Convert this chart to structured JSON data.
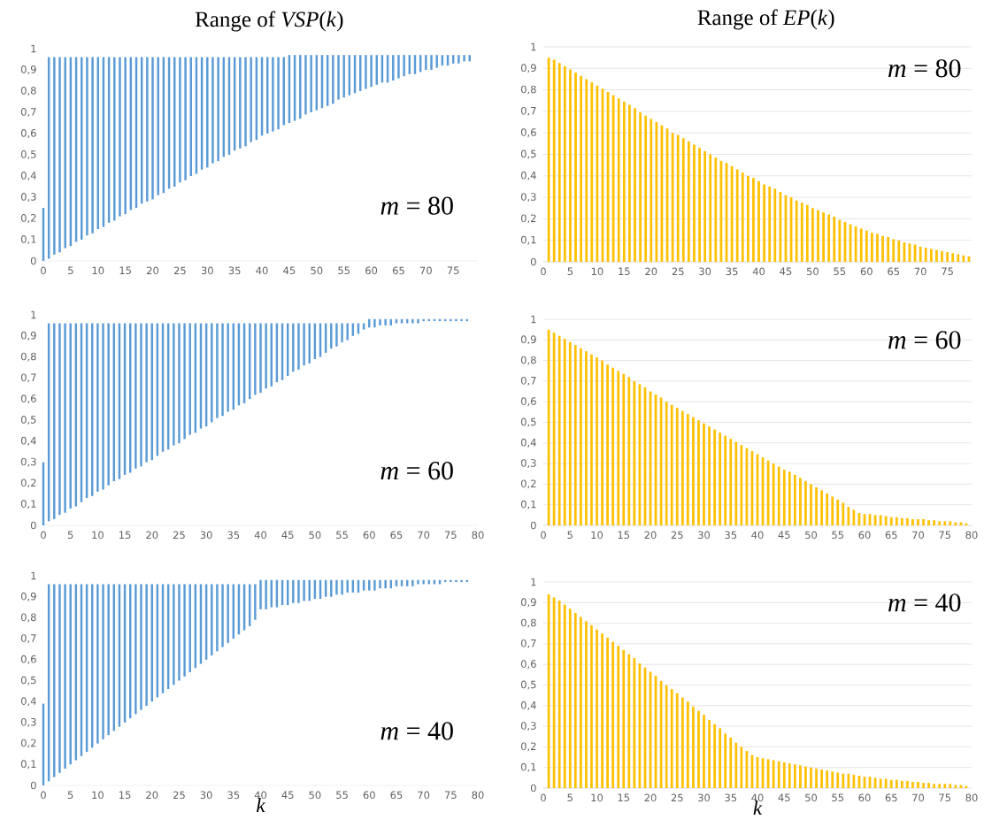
{
  "chart_data": [
    {
      "type": "bar",
      "title": "Range of *VSP*(*k*)",
      "annotations": [
        "*m* = 80"
      ],
      "color": "#5b9bd5",
      "x": [
        0,
        1,
        2,
        3,
        4,
        5,
        6,
        7,
        8,
        9,
        10,
        11,
        12,
        13,
        14,
        15,
        16,
        17,
        18,
        19,
        20,
        21,
        22,
        23,
        24,
        25,
        26,
        27,
        28,
        29,
        30,
        31,
        32,
        33,
        34,
        35,
        36,
        37,
        38,
        39,
        40,
        41,
        42,
        43,
        44,
        45,
        46,
        47,
        48,
        49,
        50,
        51,
        52,
        53,
        54,
        55,
        56,
        57,
        58,
        59,
        60,
        61,
        62,
        63,
        64,
        65,
        66,
        67,
        68,
        69,
        70,
        71,
        72,
        73,
        74,
        75,
        76,
        77,
        78
      ],
      "base": [
        0,
        0.01,
        0.03,
        0.04,
        0.06,
        0.07,
        0.09,
        0.1,
        0.12,
        0.13,
        0.15,
        0.16,
        0.18,
        0.19,
        0.21,
        0.22,
        0.24,
        0.25,
        0.27,
        0.28,
        0.29,
        0.31,
        0.32,
        0.34,
        0.35,
        0.37,
        0.38,
        0.4,
        0.41,
        0.43,
        0.44,
        0.46,
        0.47,
        0.49,
        0.5,
        0.52,
        0.53,
        0.54,
        0.56,
        0.57,
        0.59,
        0.6,
        0.61,
        0.62,
        0.64,
        0.65,
        0.66,
        0.67,
        0.69,
        0.7,
        0.71,
        0.72,
        0.73,
        0.74,
        0.76,
        0.77,
        0.78,
        0.79,
        0.8,
        0.81,
        0.82,
        0.83,
        0.84,
        0.84,
        0.85,
        0.86,
        0.87,
        0.88,
        0.88,
        0.89,
        0.9,
        0.9,
        0.91,
        0.92,
        0.92,
        0.93,
        0.93,
        0.94,
        0.94
      ],
      "values": [
        0.25,
        0.95,
        0.93,
        0.92,
        0.9,
        0.89,
        0.87,
        0.86,
        0.84,
        0.83,
        0.81,
        0.8,
        0.78,
        0.77,
        0.75,
        0.74,
        0.72,
        0.71,
        0.69,
        0.68,
        0.67,
        0.65,
        0.64,
        0.62,
        0.61,
        0.59,
        0.58,
        0.56,
        0.55,
        0.53,
        0.52,
        0.5,
        0.49,
        0.47,
        0.46,
        0.44,
        0.43,
        0.42,
        0.4,
        0.39,
        0.37,
        0.36,
        0.35,
        0.34,
        0.32,
        0.32,
        0.31,
        0.3,
        0.28,
        0.27,
        0.26,
        0.25,
        0.24,
        0.23,
        0.21,
        0.2,
        0.19,
        0.18,
        0.17,
        0.16,
        0.15,
        0.14,
        0.13,
        0.13,
        0.12,
        0.11,
        0.1,
        0.09,
        0.09,
        0.08,
        0.07,
        0.07,
        0.06,
        0.05,
        0.05,
        0.04,
        0.04,
        0.03,
        0.03
      ],
      "xlim": [
        0,
        79.5
      ],
      "ylim": [
        0,
        1
      ],
      "xticks": [
        0,
        5,
        10,
        15,
        20,
        25,
        30,
        35,
        40,
        45,
        50,
        55,
        60,
        65,
        70,
        75
      ],
      "yticks": [
        0,
        {
          "value": 0.1,
          "label": "0,1"
        },
        {
          "value": 0.2,
          "label": "0,2"
        },
        {
          "value": 0.3,
          "label": "0,3"
        },
        {
          "value": 0.4,
          "label": "0,4"
        },
        {
          "value": 0.5,
          "label": "0,5"
        },
        {
          "value": 0.6,
          "label": "0,6"
        },
        {
          "value": 0.7,
          "label": "0,7"
        },
        {
          "value": 0.8,
          "label": "0,8"
        },
        {
          "value": 0.9,
          "label": "0,9"
        },
        1
      ]
    },
    {
      "type": "bar",
      "title": "Range of *EP*(*k*)",
      "annotations": [
        "*m* = 80"
      ],
      "color": "#ffc000",
      "grid": "y",
      "x": [
        1,
        2,
        3,
        4,
        5,
        6,
        7,
        8,
        9,
        10,
        11,
        12,
        13,
        14,
        15,
        16,
        17,
        18,
        19,
        20,
        21,
        22,
        23,
        24,
        25,
        26,
        27,
        28,
        29,
        30,
        31,
        32,
        33,
        34,
        35,
        36,
        37,
        38,
        39,
        40,
        41,
        42,
        43,
        44,
        45,
        46,
        47,
        48,
        49,
        50,
        51,
        52,
        53,
        54,
        55,
        56,
        57,
        58,
        59,
        60,
        61,
        62,
        63,
        64,
        65,
        66,
        67,
        68,
        69,
        70,
        71,
        72,
        73,
        74,
        75,
        76,
        77,
        78,
        79
      ],
      "values": [
        0.95,
        0.94,
        0.925,
        0.91,
        0.895,
        0.88,
        0.865,
        0.85,
        0.835,
        0.82,
        0.805,
        0.79,
        0.775,
        0.76,
        0.745,
        0.73,
        0.715,
        0.695,
        0.68,
        0.665,
        0.65,
        0.635,
        0.62,
        0.6,
        0.59,
        0.575,
        0.56,
        0.545,
        0.53,
        0.515,
        0.5,
        0.485,
        0.47,
        0.46,
        0.445,
        0.43,
        0.415,
        0.4,
        0.39,
        0.375,
        0.36,
        0.35,
        0.34,
        0.325,
        0.31,
        0.3,
        0.285,
        0.275,
        0.265,
        0.25,
        0.24,
        0.23,
        0.22,
        0.21,
        0.195,
        0.185,
        0.175,
        0.165,
        0.155,
        0.145,
        0.135,
        0.13,
        0.12,
        0.115,
        0.105,
        0.1,
        0.09,
        0.085,
        0.08,
        0.07,
        0.065,
        0.06,
        0.055,
        0.05,
        0.045,
        0.04,
        0.035,
        0.03,
        0.025
      ],
      "xlim": [
        0,
        79.5
      ],
      "ylim": [
        0,
        1
      ],
      "xticks": [
        0,
        5,
        10,
        15,
        20,
        25,
        30,
        35,
        40,
        45,
        50,
        55,
        60,
        65,
        70,
        75
      ],
      "yticks": [
        0,
        {
          "value": 0.1,
          "label": "0,1"
        },
        {
          "value": 0.2,
          "label": "0,2"
        },
        {
          "value": 0.3,
          "label": "0,3"
        },
        {
          "value": 0.4,
          "label": "0,4"
        },
        {
          "value": 0.5,
          "label": "0,5"
        },
        {
          "value": 0.6,
          "label": "0,6"
        },
        {
          "value": 0.7,
          "label": "0,7"
        },
        {
          "value": 0.8,
          "label": "0,8"
        },
        {
          "value": 0.9,
          "label": "0,9"
        },
        1
      ]
    },
    {
      "type": "bar",
      "annotations": [
        "*m* = 60"
      ],
      "color": "#5b9bd5",
      "x": [
        0,
        1,
        2,
        3,
        4,
        5,
        6,
        7,
        8,
        9,
        10,
        11,
        12,
        13,
        14,
        15,
        16,
        17,
        18,
        19,
        20,
        21,
        22,
        23,
        24,
        25,
        26,
        27,
        28,
        29,
        30,
        31,
        32,
        33,
        34,
        35,
        36,
        37,
        38,
        39,
        40,
        41,
        42,
        43,
        44,
        45,
        46,
        47,
        48,
        49,
        50,
        51,
        52,
        53,
        54,
        55,
        56,
        57,
        58,
        59,
        60,
        61,
        62,
        63,
        64,
        65,
        66,
        67,
        68,
        69,
        70,
        71,
        72,
        73,
        74,
        75,
        76,
        77,
        78
      ],
      "base": [
        0,
        0.02,
        0.03,
        0.05,
        0.06,
        0.08,
        0.09,
        0.11,
        0.13,
        0.14,
        0.16,
        0.17,
        0.19,
        0.21,
        0.22,
        0.24,
        0.25,
        0.27,
        0.28,
        0.3,
        0.31,
        0.33,
        0.35,
        0.36,
        0.38,
        0.39,
        0.41,
        0.43,
        0.44,
        0.46,
        0.47,
        0.49,
        0.51,
        0.52,
        0.54,
        0.55,
        0.57,
        0.58,
        0.6,
        0.62,
        0.63,
        0.65,
        0.66,
        0.68,
        0.69,
        0.71,
        0.73,
        0.74,
        0.76,
        0.77,
        0.79,
        0.8,
        0.82,
        0.84,
        0.85,
        0.87,
        0.88,
        0.9,
        0.91,
        0.93,
        0.94,
        0.94,
        0.95,
        0.95,
        0.95,
        0.96,
        0.96,
        0.96,
        0.96,
        0.96,
        0.97,
        0.97,
        0.97,
        0.97,
        0.97,
        0.97,
        0.97,
        0.97,
        0.97
      ],
      "values": [
        0.3,
        0.94,
        0.93,
        0.91,
        0.9,
        0.88,
        0.87,
        0.85,
        0.83,
        0.82,
        0.8,
        0.79,
        0.77,
        0.75,
        0.74,
        0.72,
        0.71,
        0.69,
        0.68,
        0.66,
        0.65,
        0.63,
        0.61,
        0.6,
        0.58,
        0.57,
        0.55,
        0.53,
        0.52,
        0.5,
        0.49,
        0.47,
        0.45,
        0.44,
        0.42,
        0.41,
        0.39,
        0.38,
        0.36,
        0.34,
        0.33,
        0.31,
        0.3,
        0.28,
        0.27,
        0.25,
        0.23,
        0.22,
        0.2,
        0.19,
        0.17,
        0.16,
        0.14,
        0.12,
        0.11,
        0.09,
        0.08,
        0.06,
        0.05,
        0.03,
        0.04,
        0.04,
        0.03,
        0.03,
        0.03,
        0.02,
        0.02,
        0.02,
        0.02,
        0.02,
        0.01,
        0.01,
        0.01,
        0.01,
        0.01,
        0.01,
        0.01,
        0.01,
        0.01
      ],
      "xlim": [
        0,
        80
      ],
      "ylim": [
        0,
        1
      ],
      "xticks": [
        0,
        5,
        10,
        15,
        20,
        25,
        30,
        35,
        40,
        45,
        50,
        55,
        60,
        65,
        70,
        75,
        80
      ],
      "yticks": [
        0,
        {
          "value": 0.1,
          "label": "0,1"
        },
        {
          "value": 0.2,
          "label": "0,2"
        },
        {
          "value": 0.3,
          "label": "0,3"
        },
        {
          "value": 0.4,
          "label": "0,4"
        },
        {
          "value": 0.5,
          "label": "0,5"
        },
        {
          "value": 0.6,
          "label": "0,6"
        },
        {
          "value": 0.7,
          "label": "0,7"
        },
        {
          "value": 0.8,
          "label": "0,8"
        },
        {
          "value": 0.9,
          "label": "0,9"
        },
        1
      ]
    },
    {
      "type": "bar",
      "annotations": [
        "*m* = 60"
      ],
      "color": "#ffc000",
      "grid": "y",
      "x": [
        1,
        2,
        3,
        4,
        5,
        6,
        7,
        8,
        9,
        10,
        11,
        12,
        13,
        14,
        15,
        16,
        17,
        18,
        19,
        20,
        21,
        22,
        23,
        24,
        25,
        26,
        27,
        28,
        29,
        30,
        31,
        32,
        33,
        34,
        35,
        36,
        37,
        38,
        39,
        40,
        41,
        42,
        43,
        44,
        45,
        46,
        47,
        48,
        49,
        50,
        51,
        52,
        53,
        54,
        55,
        56,
        57,
        58,
        59,
        60,
        61,
        62,
        63,
        64,
        65,
        66,
        67,
        68,
        69,
        70,
        71,
        72,
        73,
        74,
        75,
        76,
        77,
        78,
        79
      ],
      "values": [
        0.95,
        0.935,
        0.92,
        0.905,
        0.89,
        0.875,
        0.86,
        0.845,
        0.83,
        0.815,
        0.8,
        0.78,
        0.765,
        0.75,
        0.735,
        0.72,
        0.7,
        0.685,
        0.67,
        0.65,
        0.635,
        0.62,
        0.6,
        0.585,
        0.57,
        0.555,
        0.54,
        0.525,
        0.51,
        0.495,
        0.48,
        0.465,
        0.45,
        0.435,
        0.42,
        0.405,
        0.39,
        0.375,
        0.36,
        0.345,
        0.33,
        0.315,
        0.3,
        0.285,
        0.27,
        0.26,
        0.245,
        0.23,
        0.215,
        0.2,
        0.185,
        0.17,
        0.155,
        0.14,
        0.125,
        0.11,
        0.09,
        0.075,
        0.06,
        0.055,
        0.055,
        0.05,
        0.05,
        0.045,
        0.04,
        0.04,
        0.035,
        0.035,
        0.03,
        0.03,
        0.03,
        0.025,
        0.025,
        0.02,
        0.02,
        0.02,
        0.015,
        0.015,
        0.01
      ],
      "xlim": [
        0,
        80
      ],
      "ylim": [
        0,
        1
      ],
      "xticks": [
        0,
        5,
        10,
        15,
        20,
        25,
        30,
        35,
        40,
        45,
        50,
        55,
        60,
        65,
        70,
        75,
        80
      ],
      "yticks": [
        0,
        {
          "value": 0.1,
          "label": "0,1"
        },
        {
          "value": 0.2,
          "label": "0,2"
        },
        {
          "value": 0.3,
          "label": "0,3"
        },
        {
          "value": 0.4,
          "label": "0,4"
        },
        {
          "value": 0.5,
          "label": "0,5"
        },
        {
          "value": 0.6,
          "label": "0,6"
        },
        {
          "value": 0.7,
          "label": "0,7"
        },
        {
          "value": 0.8,
          "label": "0,8"
        },
        {
          "value": 0.9,
          "label": "0,9"
        },
        1
      ]
    },
    {
      "type": "bar",
      "xlabel": "k",
      "annotations": [
        "*m* = 40"
      ],
      "color": "#5b9bd5",
      "x": [
        0,
        1,
        2,
        3,
        4,
        5,
        6,
        7,
        8,
        9,
        10,
        11,
        12,
        13,
        14,
        15,
        16,
        17,
        18,
        19,
        20,
        21,
        22,
        23,
        24,
        25,
        26,
        27,
        28,
        29,
        30,
        31,
        32,
        33,
        34,
        35,
        36,
        37,
        38,
        39,
        40,
        41,
        42,
        43,
        44,
        45,
        46,
        47,
        48,
        49,
        50,
        51,
        52,
        53,
        54,
        55,
        56,
        57,
        58,
        59,
        60,
        61,
        62,
        63,
        64,
        65,
        66,
        67,
        68,
        69,
        70,
        71,
        72,
        73,
        74,
        75,
        76,
        77,
        78
      ],
      "base": [
        0,
        0.02,
        0.04,
        0.06,
        0.08,
        0.1,
        0.12,
        0.14,
        0.16,
        0.18,
        0.2,
        0.22,
        0.24,
        0.26,
        0.28,
        0.3,
        0.32,
        0.34,
        0.36,
        0.38,
        0.4,
        0.42,
        0.44,
        0.46,
        0.48,
        0.5,
        0.52,
        0.54,
        0.56,
        0.58,
        0.6,
        0.62,
        0.64,
        0.66,
        0.68,
        0.7,
        0.72,
        0.74,
        0.76,
        0.79,
        0.84,
        0.84,
        0.85,
        0.85,
        0.86,
        0.86,
        0.87,
        0.87,
        0.88,
        0.88,
        0.89,
        0.89,
        0.9,
        0.9,
        0.91,
        0.91,
        0.92,
        0.92,
        0.92,
        0.93,
        0.93,
        0.93,
        0.94,
        0.94,
        0.94,
        0.95,
        0.95,
        0.95,
        0.95,
        0.96,
        0.96,
        0.96,
        0.96,
        0.96,
        0.97,
        0.97,
        0.97,
        0.97,
        0.97
      ],
      "values": [
        0.39,
        0.94,
        0.92,
        0.9,
        0.88,
        0.86,
        0.84,
        0.82,
        0.8,
        0.78,
        0.76,
        0.74,
        0.72,
        0.7,
        0.68,
        0.66,
        0.64,
        0.62,
        0.6,
        0.58,
        0.56,
        0.54,
        0.52,
        0.5,
        0.48,
        0.46,
        0.44,
        0.42,
        0.4,
        0.38,
        0.36,
        0.34,
        0.32,
        0.3,
        0.28,
        0.26,
        0.24,
        0.22,
        0.2,
        0.17,
        0.14,
        0.14,
        0.13,
        0.13,
        0.12,
        0.12,
        0.11,
        0.11,
        0.1,
        0.1,
        0.09,
        0.09,
        0.08,
        0.08,
        0.07,
        0.07,
        0.06,
        0.06,
        0.06,
        0.05,
        0.05,
        0.05,
        0.04,
        0.04,
        0.04,
        0.03,
        0.03,
        0.03,
        0.03,
        0.02,
        0.02,
        0.02,
        0.02,
        0.02,
        0.01,
        0.01,
        0.01,
        0.01,
        0.01
      ],
      "xlim": [
        0,
        80
      ],
      "ylim": [
        0,
        1
      ],
      "xticks": [
        0,
        5,
        10,
        15,
        20,
        25,
        30,
        35,
        40,
        45,
        50,
        55,
        60,
        65,
        70,
        75,
        80
      ],
      "yticks": [
        0,
        {
          "value": 0.1,
          "label": "0,1"
        },
        {
          "value": 0.2,
          "label": "0,2"
        },
        {
          "value": 0.3,
          "label": "0,3"
        },
        {
          "value": 0.4,
          "label": "0,4"
        },
        {
          "value": 0.5,
          "label": "0,5"
        },
        {
          "value": 0.6,
          "label": "0,6"
        },
        {
          "value": 0.7,
          "label": "0,7"
        },
        {
          "value": 0.8,
          "label": "0,8"
        },
        {
          "value": 0.9,
          "label": "0,9"
        },
        1
      ]
    },
    {
      "type": "bar",
      "xlabel": "k",
      "annotations": [
        "*m* = 40"
      ],
      "color": "#ffc000",
      "grid": "y",
      "x": [
        1,
        2,
        3,
        4,
        5,
        6,
        7,
        8,
        9,
        10,
        11,
        12,
        13,
        14,
        15,
        16,
        17,
        18,
        19,
        20,
        21,
        22,
        23,
        24,
        25,
        26,
        27,
        28,
        29,
        30,
        31,
        32,
        33,
        34,
        35,
        36,
        37,
        38,
        39,
        40,
        41,
        42,
        43,
        44,
        45,
        46,
        47,
        48,
        49,
        50,
        51,
        52,
        53,
        54,
        55,
        56,
        57,
        58,
        59,
        60,
        61,
        62,
        63,
        64,
        65,
        66,
        67,
        68,
        69,
        70,
        71,
        72,
        73,
        74,
        75,
        76,
        77,
        78,
        79
      ],
      "values": [
        0.94,
        0.925,
        0.91,
        0.89,
        0.87,
        0.85,
        0.83,
        0.81,
        0.79,
        0.77,
        0.75,
        0.73,
        0.71,
        0.69,
        0.67,
        0.65,
        0.63,
        0.605,
        0.585,
        0.565,
        0.545,
        0.52,
        0.5,
        0.48,
        0.46,
        0.44,
        0.42,
        0.395,
        0.375,
        0.355,
        0.33,
        0.31,
        0.29,
        0.265,
        0.245,
        0.22,
        0.2,
        0.18,
        0.16,
        0.15,
        0.145,
        0.14,
        0.135,
        0.13,
        0.125,
        0.12,
        0.115,
        0.11,
        0.105,
        0.1,
        0.095,
        0.09,
        0.085,
        0.08,
        0.075,
        0.07,
        0.07,
        0.065,
        0.06,
        0.055,
        0.055,
        0.05,
        0.045,
        0.045,
        0.04,
        0.04,
        0.035,
        0.035,
        0.03,
        0.03,
        0.025,
        0.025,
        0.02,
        0.02,
        0.02,
        0.02,
        0.015,
        0.015,
        0.01
      ],
      "xlim": [
        0,
        80
      ],
      "ylim": [
        0,
        1
      ],
      "xticks": [
        0,
        5,
        10,
        15,
        20,
        25,
        30,
        35,
        40,
        45,
        50,
        55,
        60,
        65,
        70,
        75,
        80
      ],
      "yticks": [
        0,
        {
          "value": 0.1,
          "label": "0,1"
        },
        {
          "value": 0.2,
          "label": "0,2"
        },
        {
          "value": 0.3,
          "label": "0,3"
        },
        {
          "value": 0.4,
          "label": "0,4"
        },
        {
          "value": 0.5,
          "label": "0,5"
        },
        {
          "value": 0.6,
          "label": "0,6"
        },
        {
          "value": 0.7,
          "label": "0,7"
        },
        {
          "value": 0.8,
          "label": "0,8"
        },
        {
          "value": 0.9,
          "label": "0,9"
        },
        1
      ]
    }
  ]
}
